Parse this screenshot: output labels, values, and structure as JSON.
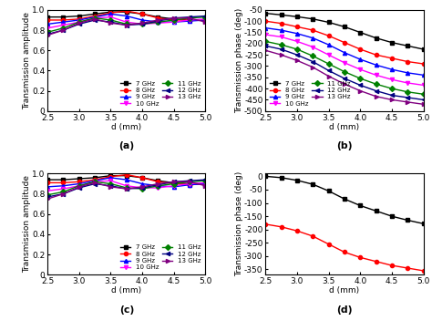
{
  "chart_data": [
    {
      "type": "line",
      "title": "(a)",
      "x_label": "d (mm)",
      "y_label": "Transmission amplitude",
      "x": [
        2.5,
        2.75,
        3.0,
        3.25,
        3.5,
        3.75,
        4.0,
        4.25,
        4.5,
        4.75,
        5.0
      ],
      "xlim": [
        2.5,
        5.0
      ],
      "xticks": [
        2.5,
        3.0,
        3.5,
        4.0,
        4.5,
        5.0
      ],
      "ylim": [
        0,
        1.0
      ],
      "yticks": [
        0,
        0.2,
        0.4,
        0.6,
        0.8,
        1.0
      ],
      "legend": "lower right",
      "series": [
        {
          "name": "7 GHz",
          "color": "#000000",
          "marker": "square",
          "values": [
            0.93,
            0.93,
            0.94,
            0.96,
            0.98,
            0.98,
            0.96,
            0.93,
            0.91,
            0.9,
            0.9
          ]
        },
        {
          "name": "8 GHz",
          "color": "#ff0000",
          "marker": "circle",
          "values": [
            0.9,
            0.9,
            0.91,
            0.94,
            0.97,
            0.99,
            0.96,
            0.92,
            0.9,
            0.9,
            0.9
          ]
        },
        {
          "name": "9 GHz",
          "color": "#0000ff",
          "marker": "triangle_up",
          "values": [
            0.86,
            0.88,
            0.9,
            0.93,
            0.96,
            0.94,
            0.9,
            0.88,
            0.88,
            0.89,
            0.9
          ]
        },
        {
          "name": "10 GHz",
          "color": "#ff00ff",
          "marker": "triangle_down",
          "values": [
            0.82,
            0.85,
            0.88,
            0.92,
            0.93,
            0.88,
            0.86,
            0.87,
            0.88,
            0.9,
            0.91
          ]
        },
        {
          "name": "11 GHz",
          "color": "#008000",
          "marker": "diamond",
          "values": [
            0.78,
            0.82,
            0.88,
            0.92,
            0.9,
            0.86,
            0.86,
            0.88,
            0.9,
            0.92,
            0.93
          ]
        },
        {
          "name": "12 GHz",
          "color": "#000080",
          "marker": "triangle_left",
          "values": [
            0.76,
            0.8,
            0.86,
            0.9,
            0.88,
            0.85,
            0.86,
            0.89,
            0.92,
            0.93,
            0.94
          ]
        },
        {
          "name": "13 GHz",
          "color": "#800080",
          "marker": "triangle_right",
          "values": [
            0.75,
            0.8,
            0.87,
            0.91,
            0.87,
            0.85,
            0.87,
            0.9,
            0.92,
            0.92,
            0.88
          ]
        }
      ]
    },
    {
      "type": "line",
      "title": "(b)",
      "x_label": "d (mm)",
      "y_label": "Transmission phase (deg)",
      "x": [
        2.5,
        2.75,
        3.0,
        3.25,
        3.5,
        3.75,
        4.0,
        4.25,
        4.5,
        4.75,
        5.0
      ],
      "xlim": [
        2.5,
        5.0
      ],
      "xticks": [
        2.5,
        3.0,
        3.5,
        4.0,
        4.5,
        5.0
      ],
      "ylim": [
        -500,
        -50
      ],
      "yticks": [
        -500,
        -450,
        -400,
        -350,
        -300,
        -250,
        -200,
        -150,
        -100,
        -50
      ],
      "legend": "lower left",
      "series": [
        {
          "name": "7 GHz",
          "color": "#000000",
          "marker": "square",
          "values": [
            -65,
            -72,
            -80,
            -90,
            -105,
            -125,
            -150,
            -175,
            -195,
            -210,
            -225
          ]
        },
        {
          "name": "8 GHz",
          "color": "#ff0000",
          "marker": "circle",
          "values": [
            -100,
            -110,
            -125,
            -140,
            -165,
            -195,
            -225,
            -250,
            -265,
            -280,
            -290
          ]
        },
        {
          "name": "9 GHz",
          "color": "#0000ff",
          "marker": "triangle_up",
          "values": [
            -130,
            -140,
            -155,
            -175,
            -205,
            -240,
            -270,
            -295,
            -315,
            -330,
            -340
          ]
        },
        {
          "name": "10 GHz",
          "color": "#ff00ff",
          "marker": "triangle_down",
          "values": [
            -160,
            -170,
            -190,
            -215,
            -250,
            -285,
            -315,
            -340,
            -360,
            -375,
            -385
          ]
        },
        {
          "name": "11 GHz",
          "color": "#008000",
          "marker": "diamond",
          "values": [
            -190,
            -205,
            -225,
            -255,
            -290,
            -325,
            -355,
            -380,
            -400,
            -415,
            -425
          ]
        },
        {
          "name": "12 GHz",
          "color": "#000080",
          "marker": "triangle_left",
          "values": [
            -210,
            -225,
            -250,
            -280,
            -320,
            -355,
            -385,
            -410,
            -430,
            -440,
            -450
          ]
        },
        {
          "name": "13 GHz",
          "color": "#800080",
          "marker": "triangle_right",
          "values": [
            -230,
            -250,
            -275,
            -305,
            -345,
            -380,
            -410,
            -435,
            -450,
            -460,
            -470
          ]
        }
      ]
    },
    {
      "type": "line",
      "title": "(c)",
      "x_label": "d (mm)",
      "y_label": "Transmission amplitude",
      "x": [
        2.5,
        2.75,
        3.0,
        3.25,
        3.5,
        3.75,
        4.0,
        4.25,
        4.5,
        4.75,
        5.0
      ],
      "xlim": [
        2.5,
        5.0
      ],
      "xticks": [
        2.5,
        3.0,
        3.5,
        4.0,
        4.5,
        5.0
      ],
      "ylim": [
        0,
        1.0
      ],
      "yticks": [
        0,
        0.2,
        0.4,
        0.6,
        0.8,
        1.0
      ],
      "legend": "lower right",
      "series": [
        {
          "name": "7 GHz",
          "color": "#000000",
          "marker": "square",
          "values": [
            0.94,
            0.94,
            0.95,
            0.96,
            0.98,
            0.98,
            0.96,
            0.93,
            0.91,
            0.9,
            0.9
          ]
        },
        {
          "name": "8 GHz",
          "color": "#ff0000",
          "marker": "circle",
          "values": [
            0.91,
            0.91,
            0.92,
            0.94,
            0.97,
            0.99,
            0.96,
            0.92,
            0.9,
            0.89,
            0.9
          ]
        },
        {
          "name": "9 GHz",
          "color": "#0000ff",
          "marker": "triangle_up",
          "values": [
            0.87,
            0.88,
            0.9,
            0.93,
            0.96,
            0.94,
            0.9,
            0.88,
            0.87,
            0.89,
            0.9
          ]
        },
        {
          "name": "10 GHz",
          "color": "#ff00ff",
          "marker": "triangle_down",
          "values": [
            0.83,
            0.85,
            0.88,
            0.92,
            0.93,
            0.88,
            0.86,
            0.86,
            0.88,
            0.9,
            0.91
          ]
        },
        {
          "name": "11 GHz",
          "color": "#008000",
          "marker": "diamond",
          "values": [
            0.79,
            0.82,
            0.88,
            0.92,
            0.9,
            0.86,
            0.85,
            0.88,
            0.9,
            0.92,
            0.93
          ]
        },
        {
          "name": "12 GHz",
          "color": "#000080",
          "marker": "triangle_left",
          "values": [
            0.77,
            0.8,
            0.86,
            0.9,
            0.88,
            0.85,
            0.86,
            0.89,
            0.92,
            0.93,
            0.94
          ]
        },
        {
          "name": "13 GHz",
          "color": "#800080",
          "marker": "triangle_right",
          "values": [
            0.75,
            0.8,
            0.87,
            0.91,
            0.87,
            0.85,
            0.87,
            0.9,
            0.92,
            0.92,
            0.88
          ]
        }
      ]
    },
    {
      "type": "line",
      "title": "(d)",
      "x_label": "d (mm)",
      "y_label": "Transmission phase (deg)",
      "x": [
        2.5,
        2.75,
        3.0,
        3.25,
        3.5,
        3.75,
        4.0,
        4.25,
        4.5,
        4.75,
        5.0
      ],
      "xlim": [
        2.5,
        5.0
      ],
      "xticks": [
        2.5,
        3.0,
        3.5,
        4.0,
        4.5,
        5.0
      ],
      "ylim": [
        -370,
        10
      ],
      "yticks": [
        -350,
        -300,
        -250,
        -200,
        -150,
        -100,
        -50,
        0
      ],
      "series": [
        {
          "color": "#000000",
          "marker": "square",
          "values": [
            0,
            -5,
            -15,
            -30,
            -55,
            -85,
            -110,
            -130,
            -150,
            -165,
            -178
          ]
        },
        {
          "color": "#ff0000",
          "marker": "circle",
          "values": [
            -180,
            -190,
            -205,
            -225,
            -255,
            -285,
            -305,
            -320,
            -335,
            -345,
            -355
          ]
        }
      ]
    }
  ]
}
